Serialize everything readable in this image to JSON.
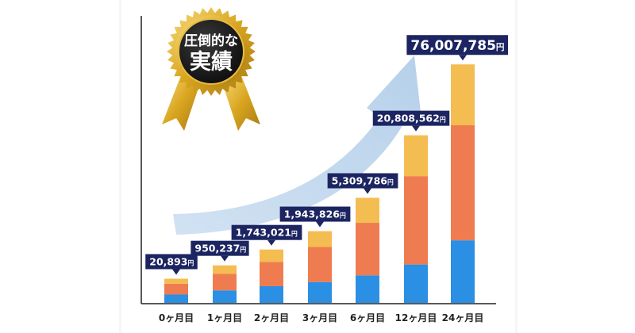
{
  "badge": {
    "line1": "圧倒的な",
    "line2": "実績"
  },
  "colors": {
    "bottom": "#2b8fe3",
    "middle": "#ef7c50",
    "top": "#f4bd52",
    "label_bg": "#1c2461",
    "label_text": "#ffffff",
    "arrow": "#b9d3ea",
    "badge_gold": "#d9a520",
    "badge_dark": "#1f1f1f"
  },
  "chart_data": {
    "type": "bar",
    "stacked": true,
    "title": "",
    "xlabel": "",
    "ylabel": "",
    "categories": [
      "0ヶ月目",
      "1ヶ月目",
      "2ヶ月目",
      "3ヶ月目",
      "6ヶ月目",
      "12ヶ月目",
      "24ヶ月目"
    ],
    "value_labels": [
      "20,893円",
      "950,237円",
      "1,743,021円",
      "1,943,826円",
      "5,309,786円",
      "20,808,562円",
      "76,007,785円"
    ],
    "series": [
      {
        "color": "#2b8fe3",
        "values": [
          1,
          1.5,
          2.0,
          2.5,
          3.3,
          4.6,
          7.5
        ]
      },
      {
        "color": "#ef7c50",
        "values": [
          1.3,
          2.0,
          2.9,
          4.2,
          6.3,
          10.6,
          13.8
        ]
      },
      {
        "color": "#f4bd52",
        "values": [
          0.6,
          1.0,
          1.5,
          1.9,
          3.0,
          4.9,
          7.3
        ]
      }
    ],
    "ylim": [
      0,
      31
    ],
    "y_axis_ticks": false,
    "grid": false,
    "legend": "none"
  }
}
